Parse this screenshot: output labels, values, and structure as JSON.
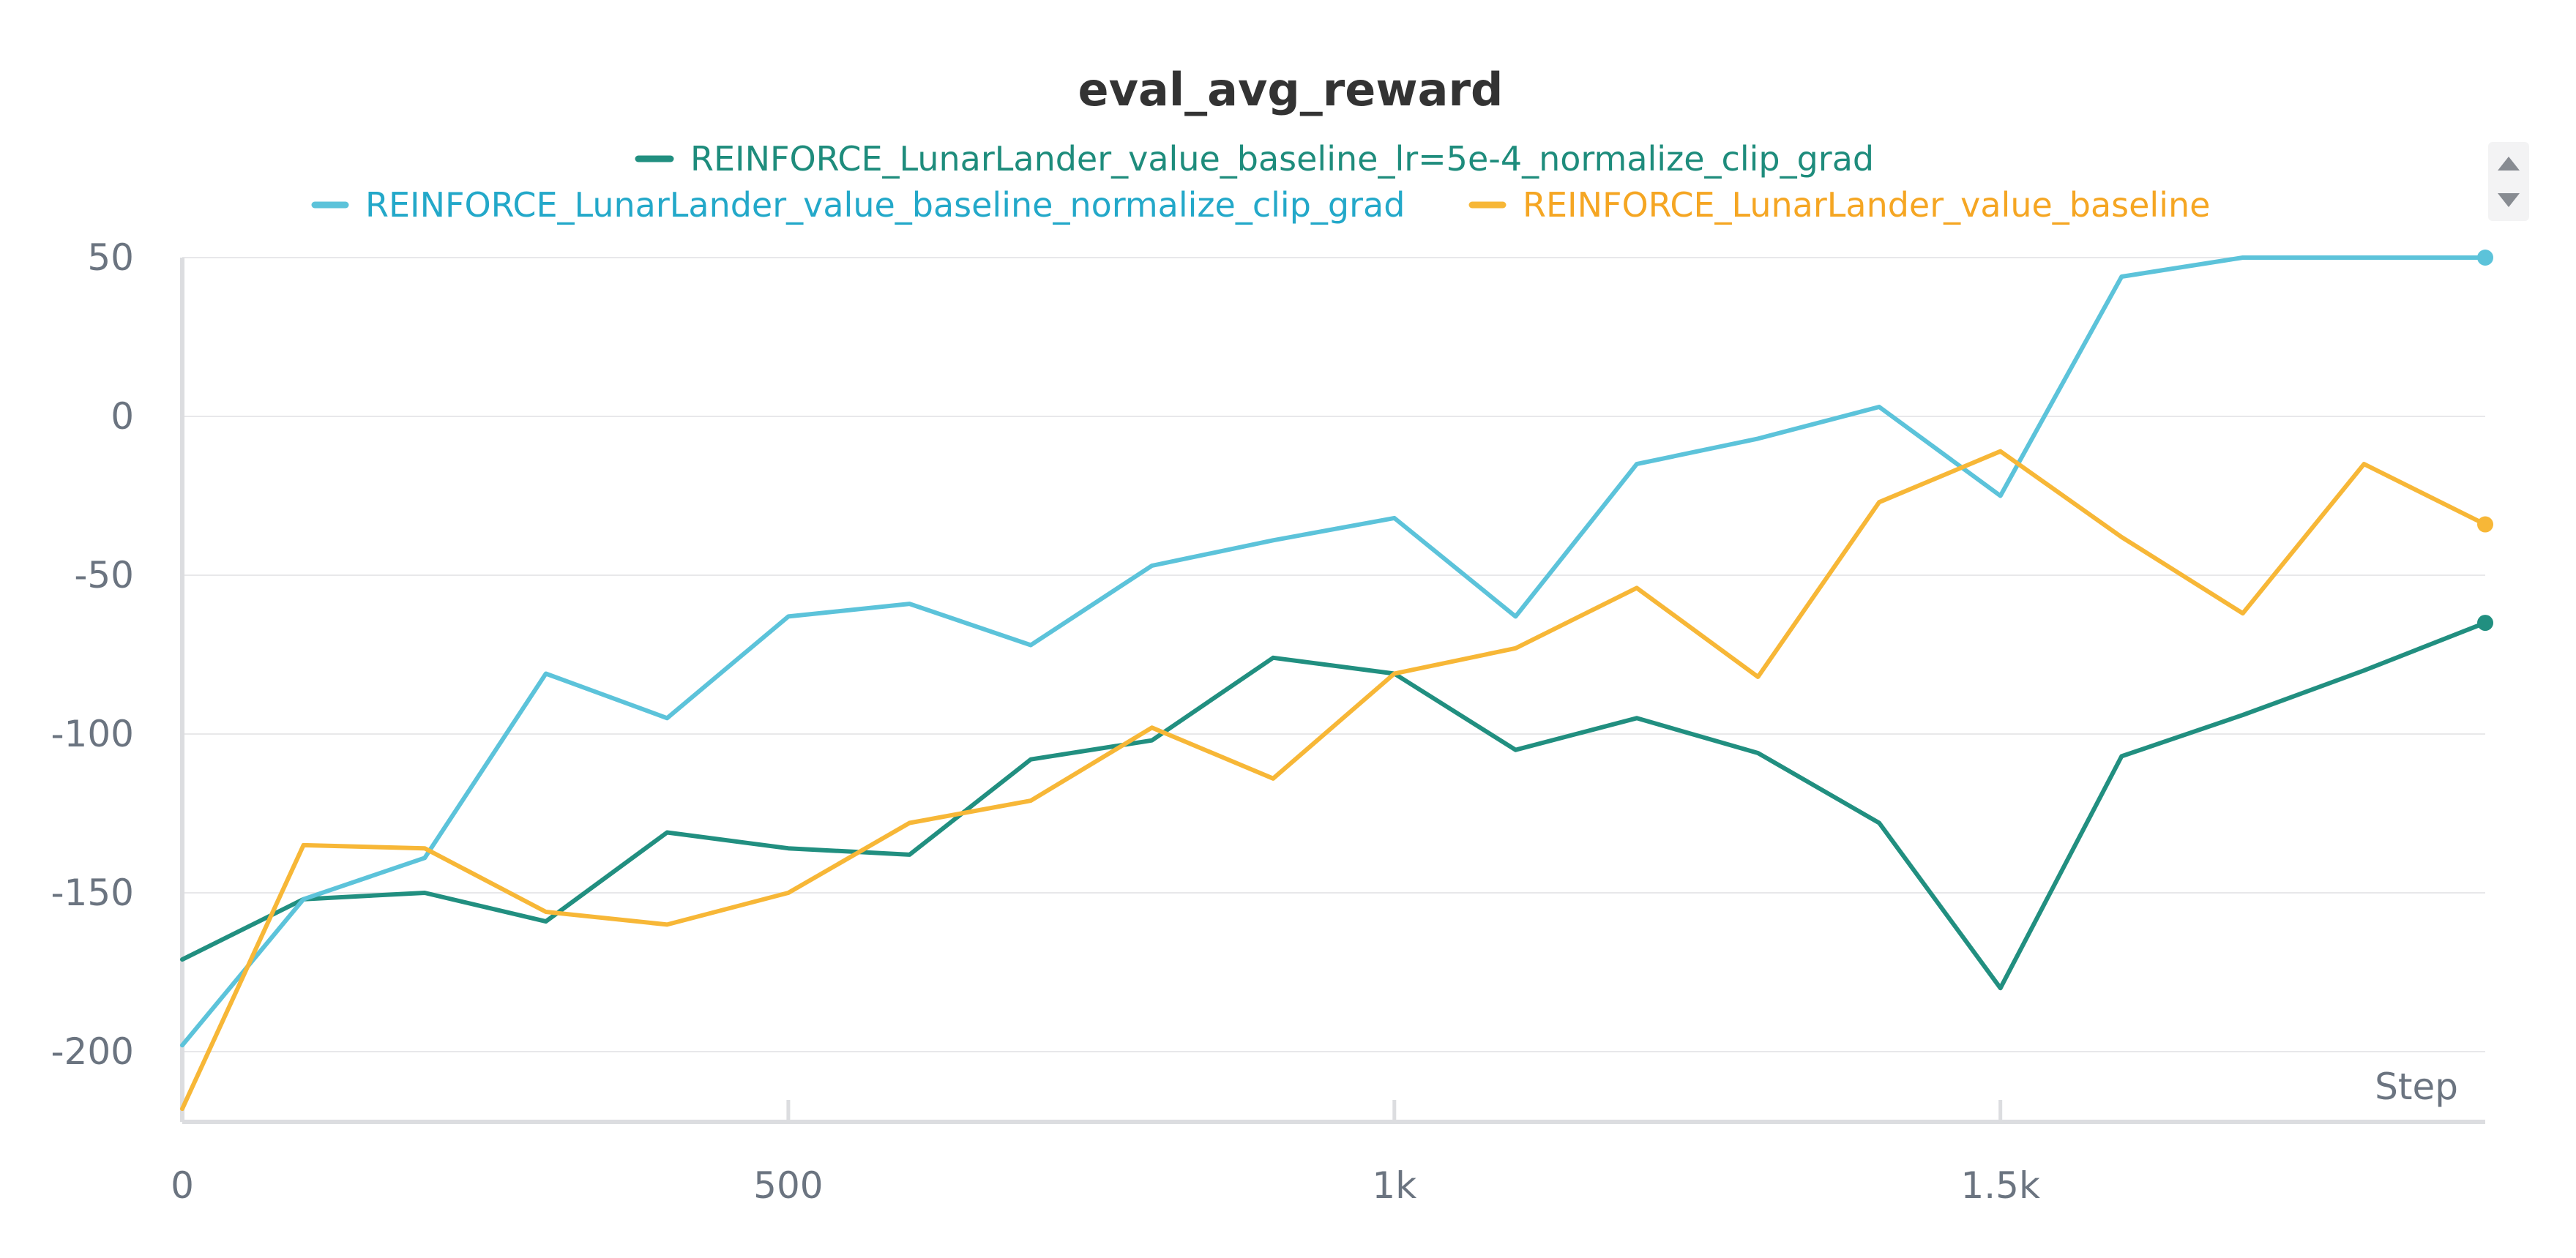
{
  "chart_data": {
    "type": "line",
    "title": "eval_avg_reward",
    "xlabel": "Step",
    "ylabel": "",
    "xlim": [
      0,
      1900
    ],
    "ylim": [
      -220,
      52
    ],
    "x_ticks": [
      {
        "value": 0,
        "label": "0"
      },
      {
        "value": 500,
        "label": "500"
      },
      {
        "value": 1000,
        "label": "1k"
      },
      {
        "value": 1500,
        "label": "1.5k"
      }
    ],
    "y_ticks": [
      {
        "value": 50,
        "label": "50"
      },
      {
        "value": 0,
        "label": "0"
      },
      {
        "value": -50,
        "label": "-50"
      },
      {
        "value": -100,
        "label": "-100"
      },
      {
        "value": -150,
        "label": "-150"
      },
      {
        "value": -200,
        "label": "-200"
      }
    ],
    "grid": true,
    "legend_position": "top",
    "x": [
      0,
      100,
      200,
      300,
      400,
      500,
      600,
      700,
      800,
      900,
      1000,
      1100,
      1200,
      1300,
      1400,
      1500,
      1600,
      1700,
      1800,
      1900
    ],
    "series": [
      {
        "name": "REINFORCE_LunarLander_value_baseline_lr=5e-4_normalize_clip_grad",
        "color": "#218f80",
        "values": [
          -171,
          -152,
          -150,
          -159,
          -131,
          -136,
          -138,
          -108,
          -102,
          -76,
          -81,
          -105,
          -95,
          -106,
          -128,
          -180,
          -107,
          -94,
          -80,
          -65
        ]
      },
      {
        "name": "REINFORCE_LunarLander_value_baseline_normalize_clip_grad",
        "color": "#5cc3da",
        "values": [
          -198,
          -152,
          -139,
          -81,
          -95,
          -63,
          -59,
          -72,
          -47,
          -39,
          -32,
          -63,
          -15,
          -7,
          3,
          -25,
          44,
          50,
          50,
          50
        ]
      },
      {
        "name": "REINFORCE_LunarLander_value_baseline",
        "color": "#f7b737",
        "values": [
          -218,
          -135,
          -136,
          -156,
          -160,
          -150,
          -128,
          -121,
          -98,
          -114,
          -81,
          -73,
          -54,
          -82,
          -27,
          -11,
          -38,
          -62,
          -15,
          -34
        ]
      }
    ]
  },
  "legend_text_colors": [
    "#1e8c7c",
    "#23a8c9",
    "#f5a623"
  ],
  "scroll_controls": {
    "up_icon": "triangle-up-icon",
    "down_icon": "triangle-down-icon"
  }
}
